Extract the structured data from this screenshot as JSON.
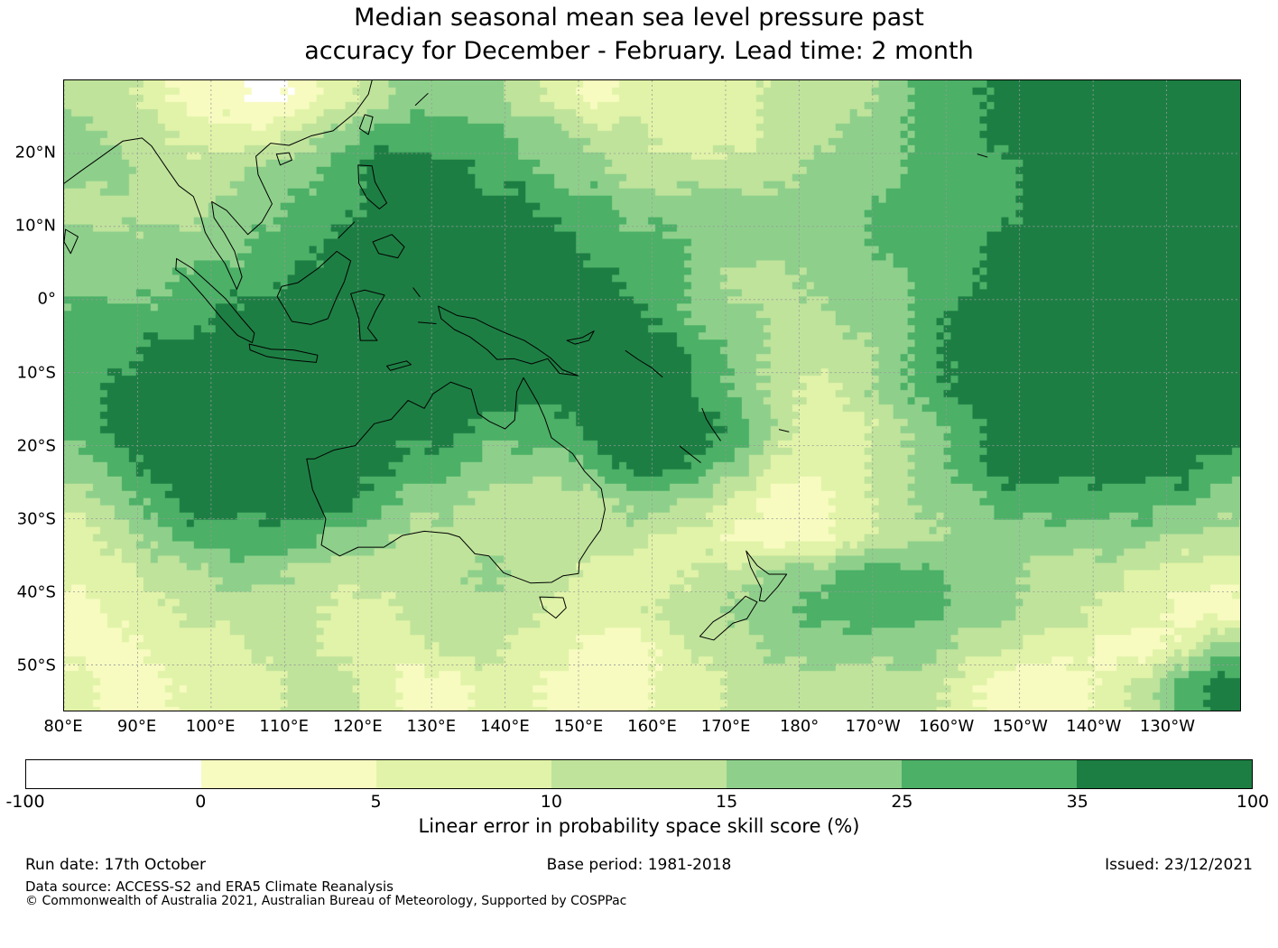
{
  "title": {
    "line1": "Median seasonal mean sea level pressure past",
    "line2": "accuracy for December - February. Lead time: 2 month"
  },
  "footer": {
    "run_date": "Run date: 17th October",
    "base_period": "Base period: 1981-2018",
    "issued": "Issued: 23/12/2021",
    "data_source": "Data source: ACCESS-S2 and ERA5 Climate Reanalysis",
    "copyright": "© Commonwealth of Australia 2021, Australian Bureau of Meteorology, Supported by COSPPac"
  },
  "chart_data": {
    "type": "heatmap",
    "title": "Median seasonal mean sea level pressure past accuracy for December - February. Lead time: 2 month",
    "xlabel": "",
    "ylabel": "",
    "lon_range": [
      80,
      240
    ],
    "lat_range": [
      -56.25,
      30
    ],
    "grid_on": true,
    "x_ticks": [
      {
        "label": "80°E",
        "lon": 80
      },
      {
        "label": "90°E",
        "lon": 90
      },
      {
        "label": "100°E",
        "lon": 100
      },
      {
        "label": "110°E",
        "lon": 110
      },
      {
        "label": "120°E",
        "lon": 120
      },
      {
        "label": "130°E",
        "lon": 130
      },
      {
        "label": "140°E",
        "lon": 140
      },
      {
        "label": "150°E",
        "lon": 150
      },
      {
        "label": "160°E",
        "lon": 160
      },
      {
        "label": "170°E",
        "lon": 170
      },
      {
        "label": "180°",
        "lon": 180
      },
      {
        "label": "170°W",
        "lon": 190
      },
      {
        "label": "160°W",
        "lon": 200
      },
      {
        "label": "150°W",
        "lon": 210
      },
      {
        "label": "140°W",
        "lon": 220
      },
      {
        "label": "130°W",
        "lon": 230
      }
    ],
    "y_ticks": [
      {
        "label": "20°N",
        "lat": 20
      },
      {
        "label": "10°N",
        "lat": 10
      },
      {
        "label": "0°",
        "lat": 0
      },
      {
        "label": "10°S",
        "lat": -10
      },
      {
        "label": "20°S",
        "lat": -20
      },
      {
        "label": "30°S",
        "lat": -30
      },
      {
        "label": "40°S",
        "lat": -40
      },
      {
        "label": "50°S",
        "lat": -50
      }
    ],
    "colorbar": {
      "label": "Linear error in probability space skill score (%)",
      "boundaries": [
        -100,
        0,
        5,
        10,
        15,
        25,
        35,
        100
      ],
      "tick_labels": [
        "-100",
        "0",
        "5",
        "10",
        "15",
        "25",
        "35",
        "100"
      ],
      "colors": [
        "#ffffff",
        "#f7fbc0",
        "#e1f3a8",
        "#bfe39b",
        "#8ed08b",
        "#4cb067",
        "#1d7e43"
      ]
    },
    "grid": {
      "description": "Skill score class per 5-degree cell; 0..6 indexes colorbar bins (-100-0,0-5,5-10,10-15,15-25,25-35,35-100). Rows from 30N to 55S, cols from 80E eastward to 120W.",
      "lon_start": 80,
      "lon_step": 5,
      "lat_start": 30,
      "lat_step": -5,
      "class_rows": [
        "33211012344432122223334556666666",
        "43322234555544332223344556666666",
        "44333445666554433333444555666666",
        "33334455666665544444445555666666",
        "44444556666666555444445556666666",
        "44455566666666655433444556666666",
        "55556666666666665443344566666666",
        "55666666666666666543334566666666",
        "56666666666666666543234566666666",
        "56666666666555666653223456666666",
        "45666666655444566542223456666665",
        "34566666544333344321123445555554",
        "23455554433333332211123344444433",
        "22334433333433222334455544333222",
        "12233332233332223344555544332211",
        "11222332223322112334444433221124",
        "21122233211221112233333321112356"
      ]
    },
    "coastlines": [
      {
        "name": "australia",
        "pts": [
          [
            113,
            -21.8
          ],
          [
            113.8,
            -26
          ],
          [
            115.6,
            -30
          ],
          [
            115,
            -33.6
          ],
          [
            117.5,
            -35.1
          ],
          [
            120,
            -33.9
          ],
          [
            123.5,
            -33.9
          ],
          [
            126,
            -32.3
          ],
          [
            129,
            -31.7
          ],
          [
            132.2,
            -32
          ],
          [
            133.8,
            -32.5
          ],
          [
            135.9,
            -34.8
          ],
          [
            137.8,
            -35.1
          ],
          [
            139.8,
            -37.4
          ],
          [
            143.5,
            -38.8
          ],
          [
            146.3,
            -38.7
          ],
          [
            147.9,
            -37.8
          ],
          [
            150,
            -37.5
          ],
          [
            150.1,
            -35.8
          ],
          [
            151.3,
            -33.9
          ],
          [
            153,
            -31.5
          ],
          [
            153.6,
            -28.7
          ],
          [
            153.1,
            -25.9
          ],
          [
            150.8,
            -23.5
          ],
          [
            149.2,
            -21.1
          ],
          [
            146.3,
            -18.9
          ],
          [
            145.4,
            -16.2
          ],
          [
            144.5,
            -14.2
          ],
          [
            143.6,
            -12.6
          ],
          [
            142.5,
            -10.7
          ],
          [
            141.6,
            -12.6
          ],
          [
            141.3,
            -16.5
          ],
          [
            140,
            -17.7
          ],
          [
            137.9,
            -16.7
          ],
          [
            136.3,
            -15.6
          ],
          [
            135.4,
            -12.3
          ],
          [
            132.6,
            -11.3
          ],
          [
            130.2,
            -12.9
          ],
          [
            129,
            -14.9
          ],
          [
            126.8,
            -13.8
          ],
          [
            124.5,
            -16.4
          ],
          [
            122.2,
            -17
          ],
          [
            119.6,
            -20
          ],
          [
            116.7,
            -20.6
          ],
          [
            114.1,
            -21.8
          ],
          [
            113,
            -21.8
          ]
        ]
      },
      {
        "name": "tasmania",
        "pts": [
          [
            144.7,
            -40.7
          ],
          [
            147.9,
            -40.8
          ],
          [
            148.3,
            -42.2
          ],
          [
            146.9,
            -43.6
          ],
          [
            145.2,
            -42.3
          ],
          [
            144.7,
            -40.7
          ]
        ]
      },
      {
        "name": "new-guinea",
        "pts": [
          [
            130.9,
            -0.9
          ],
          [
            133.5,
            -2.2
          ],
          [
            135.9,
            -2.6
          ],
          [
            137.9,
            -3.6
          ],
          [
            140.1,
            -4.6
          ],
          [
            142.6,
            -5.6
          ],
          [
            144.5,
            -6.8
          ],
          [
            146.2,
            -8
          ],
          [
            147.8,
            -9.6
          ],
          [
            149.9,
            -10.4
          ],
          [
            147.4,
            -10.1
          ],
          [
            145.8,
            -8.1
          ],
          [
            143.6,
            -8.8
          ],
          [
            141.2,
            -8.1
          ],
          [
            138.9,
            -8.2
          ],
          [
            137.6,
            -6.9
          ],
          [
            135.2,
            -5.1
          ],
          [
            133.1,
            -4.1
          ],
          [
            131.3,
            -2.6
          ],
          [
            130.9,
            -0.9
          ]
        ]
      },
      {
        "name": "new-britain",
        "pts": [
          [
            148.4,
            -5.6
          ],
          [
            150.5,
            -5.2
          ],
          [
            152.1,
            -4.3
          ],
          [
            151.4,
            -5.6
          ],
          [
            149.5,
            -6.1
          ],
          [
            148.4,
            -5.6
          ]
        ]
      },
      {
        "name": "borneo",
        "pts": [
          [
            109.6,
            1.8
          ],
          [
            111.8,
            2.3
          ],
          [
            114.6,
            4.3
          ],
          [
            117.1,
            6.6
          ],
          [
            119,
            5.3
          ],
          [
            118.1,
            2.4
          ],
          [
            117,
            0.1
          ],
          [
            115.9,
            -2.6
          ],
          [
            113.6,
            -3.4
          ],
          [
            111,
            -3
          ],
          [
            109.9,
            -1.1
          ],
          [
            109,
            0.4
          ],
          [
            109.6,
            1.8
          ]
        ]
      },
      {
        "name": "sumatra",
        "pts": [
          [
            95.3,
            5.6
          ],
          [
            97.4,
            4.3
          ],
          [
            99.6,
            2.3
          ],
          [
            102,
            0.1
          ],
          [
            104,
            -2.4
          ],
          [
            105.9,
            -4.6
          ],
          [
            105.6,
            -5.9
          ],
          [
            103.6,
            -4.9
          ],
          [
            101.4,
            -2.5
          ],
          [
            99,
            0.4
          ],
          [
            96.8,
            2.9
          ],
          [
            95.2,
            4.1
          ],
          [
            95.3,
            5.6
          ]
        ]
      },
      {
        "name": "java",
        "pts": [
          [
            105.2,
            -6.1
          ],
          [
            108.2,
            -6.8
          ],
          [
            111.2,
            -6.9
          ],
          [
            114.5,
            -7.6
          ],
          [
            114.3,
            -8.6
          ],
          [
            111,
            -8.3
          ],
          [
            107.6,
            -7.8
          ],
          [
            105.3,
            -6.9
          ],
          [
            105.2,
            -6.1
          ]
        ]
      },
      {
        "name": "sulawesi",
        "pts": [
          [
            119,
            0.8
          ],
          [
            120.9,
            1.3
          ],
          [
            123.6,
            0.6
          ],
          [
            122.4,
            -1.5
          ],
          [
            121.3,
            -3.9
          ],
          [
            122.6,
            -5.6
          ],
          [
            120.3,
            -5.6
          ],
          [
            120.1,
            -2.6
          ],
          [
            119,
            0.8
          ]
        ]
      },
      {
        "name": "timor",
        "pts": [
          [
            123.9,
            -9.1
          ],
          [
            126.6,
            -8.4
          ],
          [
            127.2,
            -8.9
          ],
          [
            124.4,
            -9.7
          ],
          [
            123.9,
            -9.1
          ]
        ]
      },
      {
        "name": "halmahera",
        "pts": [
          [
            127.5,
            1.6
          ],
          [
            128.4,
            0.4
          ]
        ]
      },
      {
        "name": "seram",
        "pts": [
          [
            128.2,
            -3.1
          ],
          [
            130.6,
            -3.3
          ]
        ]
      },
      {
        "name": "luzon",
        "pts": [
          [
            120,
            18.4
          ],
          [
            121.9,
            18.3
          ],
          [
            122.3,
            16.1
          ],
          [
            123.9,
            13.2
          ],
          [
            122.9,
            12.4
          ],
          [
            121.2,
            13.9
          ],
          [
            120.1,
            15.9
          ],
          [
            120,
            18.4
          ]
        ]
      },
      {
        "name": "mindanao",
        "pts": [
          [
            122,
            7.9
          ],
          [
            124.6,
            8.9
          ],
          [
            126.3,
            7.2
          ],
          [
            125.4,
            5.7
          ],
          [
            122.8,
            6.3
          ],
          [
            122,
            7.9
          ]
        ]
      },
      {
        "name": "palawan",
        "pts": [
          [
            117.3,
            8.4
          ],
          [
            119.5,
            10.6
          ]
        ]
      },
      {
        "name": "asia-mainland",
        "pts": [
          [
            80,
            15.9
          ],
          [
            82.3,
            17.6
          ],
          [
            85.1,
            19.6
          ],
          [
            88,
            21.7
          ],
          [
            90.6,
            22.1
          ],
          [
            91.9,
            21
          ],
          [
            94,
            17.9
          ],
          [
            95.6,
            15.6
          ],
          [
            97.6,
            14.1
          ],
          [
            98.6,
            11.4
          ],
          [
            99.2,
            9.2
          ],
          [
            100.4,
            7.1
          ],
          [
            101.9,
            4.9
          ],
          [
            103.5,
            1.4
          ],
          [
            104.2,
            3.1
          ],
          [
            103.2,
            6.6
          ],
          [
            101.8,
            9.1
          ],
          [
            100.4,
            11.2
          ],
          [
            100.1,
            13.4
          ],
          [
            102.1,
            12.2
          ],
          [
            105,
            8.9
          ],
          [
            106.9,
            10.6
          ],
          [
            108.3,
            13.1
          ],
          [
            106.4,
            17.1
          ],
          [
            106.1,
            19.6
          ],
          [
            108.1,
            21.4
          ],
          [
            110.6,
            21.1
          ],
          [
            113.6,
            22.4
          ],
          [
            116.6,
            23.1
          ],
          [
            119.6,
            25.6
          ],
          [
            121.4,
            28.1
          ],
          [
            121.9,
            30
          ]
        ]
      },
      {
        "name": "taiwan",
        "pts": [
          [
            120.9,
            25.3
          ],
          [
            122,
            25
          ],
          [
            121.4,
            22.6
          ],
          [
            120.2,
            23.4
          ],
          [
            120.9,
            25.3
          ]
        ]
      },
      {
        "name": "hainan",
        "pts": [
          [
            108.9,
            19.9
          ],
          [
            110.6,
            20.1
          ],
          [
            111,
            19.1
          ],
          [
            109.4,
            18.4
          ],
          [
            108.9,
            19.9
          ]
        ]
      },
      {
        "name": "ryukyu",
        "pts": [
          [
            127.8,
            26.6
          ],
          [
            129.5,
            28.2
          ]
        ]
      },
      {
        "name": "sri-lanka",
        "pts": [
          [
            80.2,
            9.6
          ],
          [
            81.9,
            8.6
          ],
          [
            80.9,
            6.3
          ],
          [
            80,
            7.9
          ],
          [
            80.2,
            9.6
          ]
        ]
      },
      {
        "name": "nz-north-island",
        "pts": [
          [
            172.8,
            -34.4
          ],
          [
            174.3,
            -36.4
          ],
          [
            175.9,
            -37.6
          ],
          [
            178.3,
            -37.6
          ],
          [
            177.1,
            -39.3
          ],
          [
            175.3,
            -41.3
          ],
          [
            174.6,
            -41.2
          ],
          [
            174.9,
            -39.6
          ],
          [
            173.4,
            -36.6
          ],
          [
            172.8,
            -34.4
          ]
        ]
      },
      {
        "name": "nz-south-island",
        "pts": [
          [
            172.7,
            -40.6
          ],
          [
            174.3,
            -41.4
          ],
          [
            172.9,
            -43.7
          ],
          [
            171,
            -44.3
          ],
          [
            168.4,
            -46.6
          ],
          [
            166.5,
            -46.1
          ],
          [
            168.3,
            -44.1
          ],
          [
            170.6,
            -42.7
          ],
          [
            172.7,
            -40.6
          ]
        ]
      },
      {
        "name": "solomons",
        "pts": [
          [
            156.4,
            -7
          ],
          [
            158.1,
            -8.2
          ],
          [
            159.9,
            -9.3
          ],
          [
            161.4,
            -10.6
          ]
        ]
      },
      {
        "name": "vanuatu",
        "pts": [
          [
            166.8,
            -14.9
          ],
          [
            167.4,
            -16.4
          ],
          [
            168.2,
            -17.7
          ],
          [
            169.3,
            -19.3
          ]
        ]
      },
      {
        "name": "new-caledonia",
        "pts": [
          [
            163.8,
            -20.1
          ],
          [
            166.6,
            -22.3
          ]
        ]
      },
      {
        "name": "fiji",
        "pts": [
          [
            177.3,
            -17.8
          ],
          [
            178.6,
            -18.1
          ]
        ]
      },
      {
        "name": "hawaii",
        "pts": [
          [
            204.3,
            19.9
          ],
          [
            205.6,
            19.5
          ]
        ]
      }
    ]
  }
}
